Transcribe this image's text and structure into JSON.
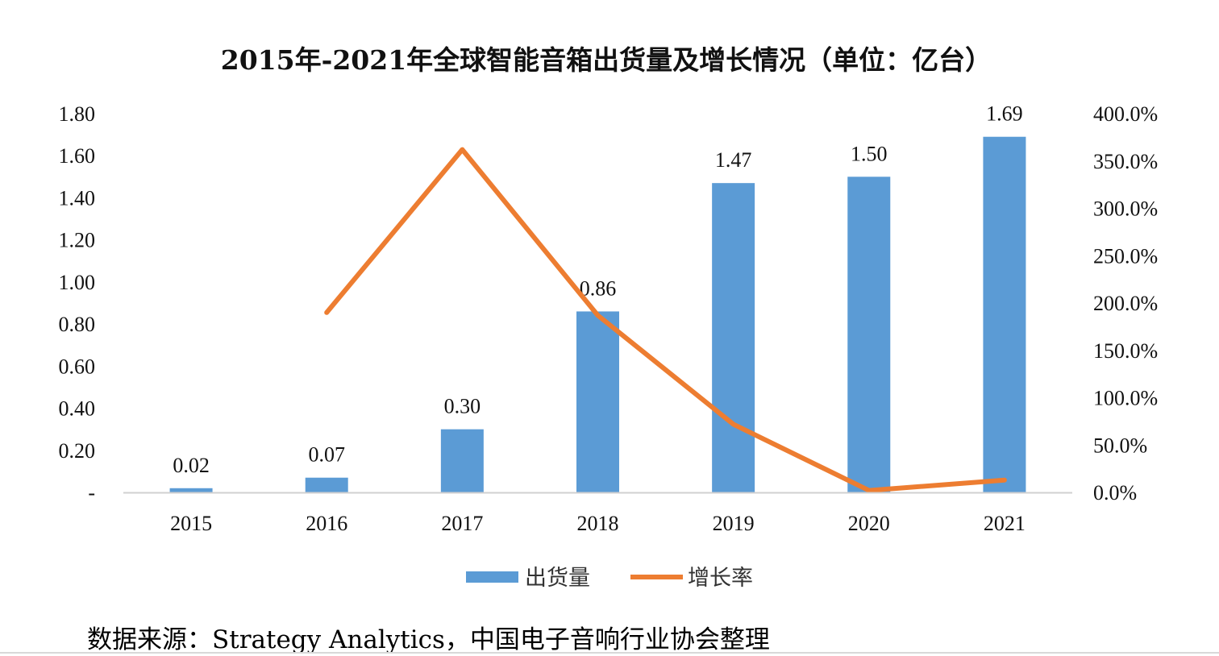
{
  "chart_data": {
    "type": "bar",
    "title": "2015年-2021年全球智能音箱出货量及增长情况（单位：亿台）",
    "categories": [
      "2015",
      "2016",
      "2017",
      "2018",
      "2019",
      "2020",
      "2021"
    ],
    "series": [
      {
        "name": "出货量",
        "type": "bar",
        "axis": "left",
        "values": [
          0.02,
          0.07,
          0.3,
          0.86,
          1.47,
          1.5,
          1.69
        ],
        "data_labels": [
          "0.02",
          "0.07",
          "0.30",
          "0.86",
          "1.47",
          "1.50",
          "1.69"
        ]
      },
      {
        "name": "增长率",
        "type": "line",
        "axis": "right",
        "values": [
          null,
          190,
          362,
          187,
          72,
          2,
          13
        ]
      }
    ],
    "y_left": {
      "ylim": [
        0,
        1.8
      ],
      "ticks": [
        0,
        0.2,
        0.4,
        0.6,
        0.8,
        1.0,
        1.2,
        1.4,
        1.6,
        1.8
      ],
      "tick_labels": [
        "-",
        "0.20",
        "0.40",
        "0.60",
        "0.80",
        "1.00",
        "1.20",
        "1.40",
        "1.60",
        "1.80"
      ]
    },
    "y_right": {
      "ylim": [
        0,
        400
      ],
      "ticks": [
        0,
        50,
        100,
        150,
        200,
        250,
        300,
        350,
        400
      ],
      "tick_labels": [
        "0.0%",
        "50.0%",
        "100.0%",
        "150.0%",
        "200.0%",
        "250.0%",
        "300.0%",
        "350.0%",
        "400.0%"
      ]
    },
    "legend_position": "bottom",
    "grid": false,
    "colors": {
      "bar": "#5b9bd5",
      "line": "#ed7d31"
    }
  },
  "source_text": "数据来源：Strategy Analytics，中国电子音响行业协会整理"
}
